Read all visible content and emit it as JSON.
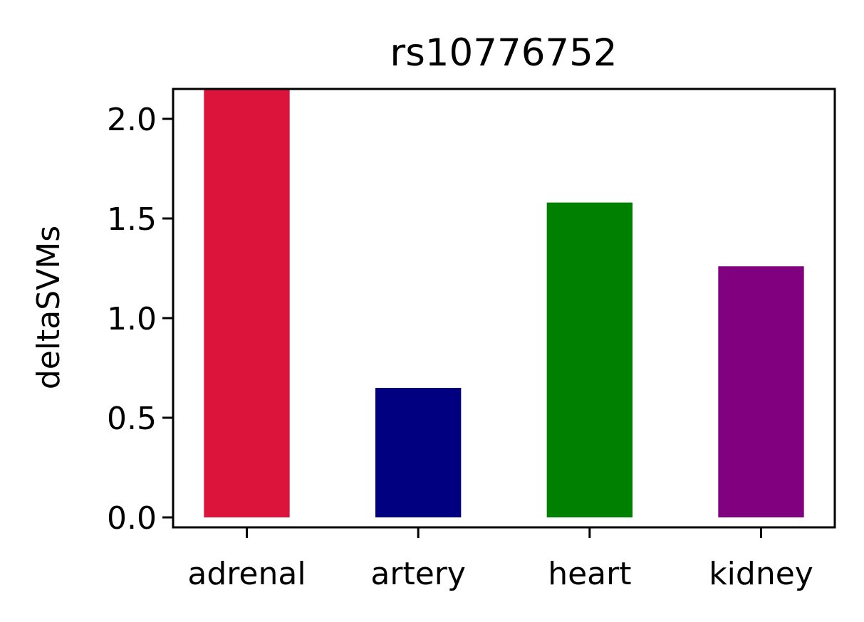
{
  "chart_data": {
    "type": "bar",
    "title": "rs10776752",
    "xlabel": "",
    "ylabel": "deltaSVMs",
    "categories": [
      "adrenal",
      "artery",
      "heart",
      "kidney"
    ],
    "values": [
      2.25,
      0.65,
      1.58,
      1.26
    ],
    "colors": [
      "#dc143c",
      "#000080",
      "#008000",
      "#800080"
    ],
    "ylim": [
      -0.05,
      2.15
    ],
    "yticks": [
      0.0,
      0.5,
      1.0,
      1.5,
      2.0
    ],
    "ytick_labels": [
      "0.0",
      "0.5",
      "1.0",
      "1.5",
      "2.0"
    ],
    "grid": false,
    "legend": "none"
  }
}
